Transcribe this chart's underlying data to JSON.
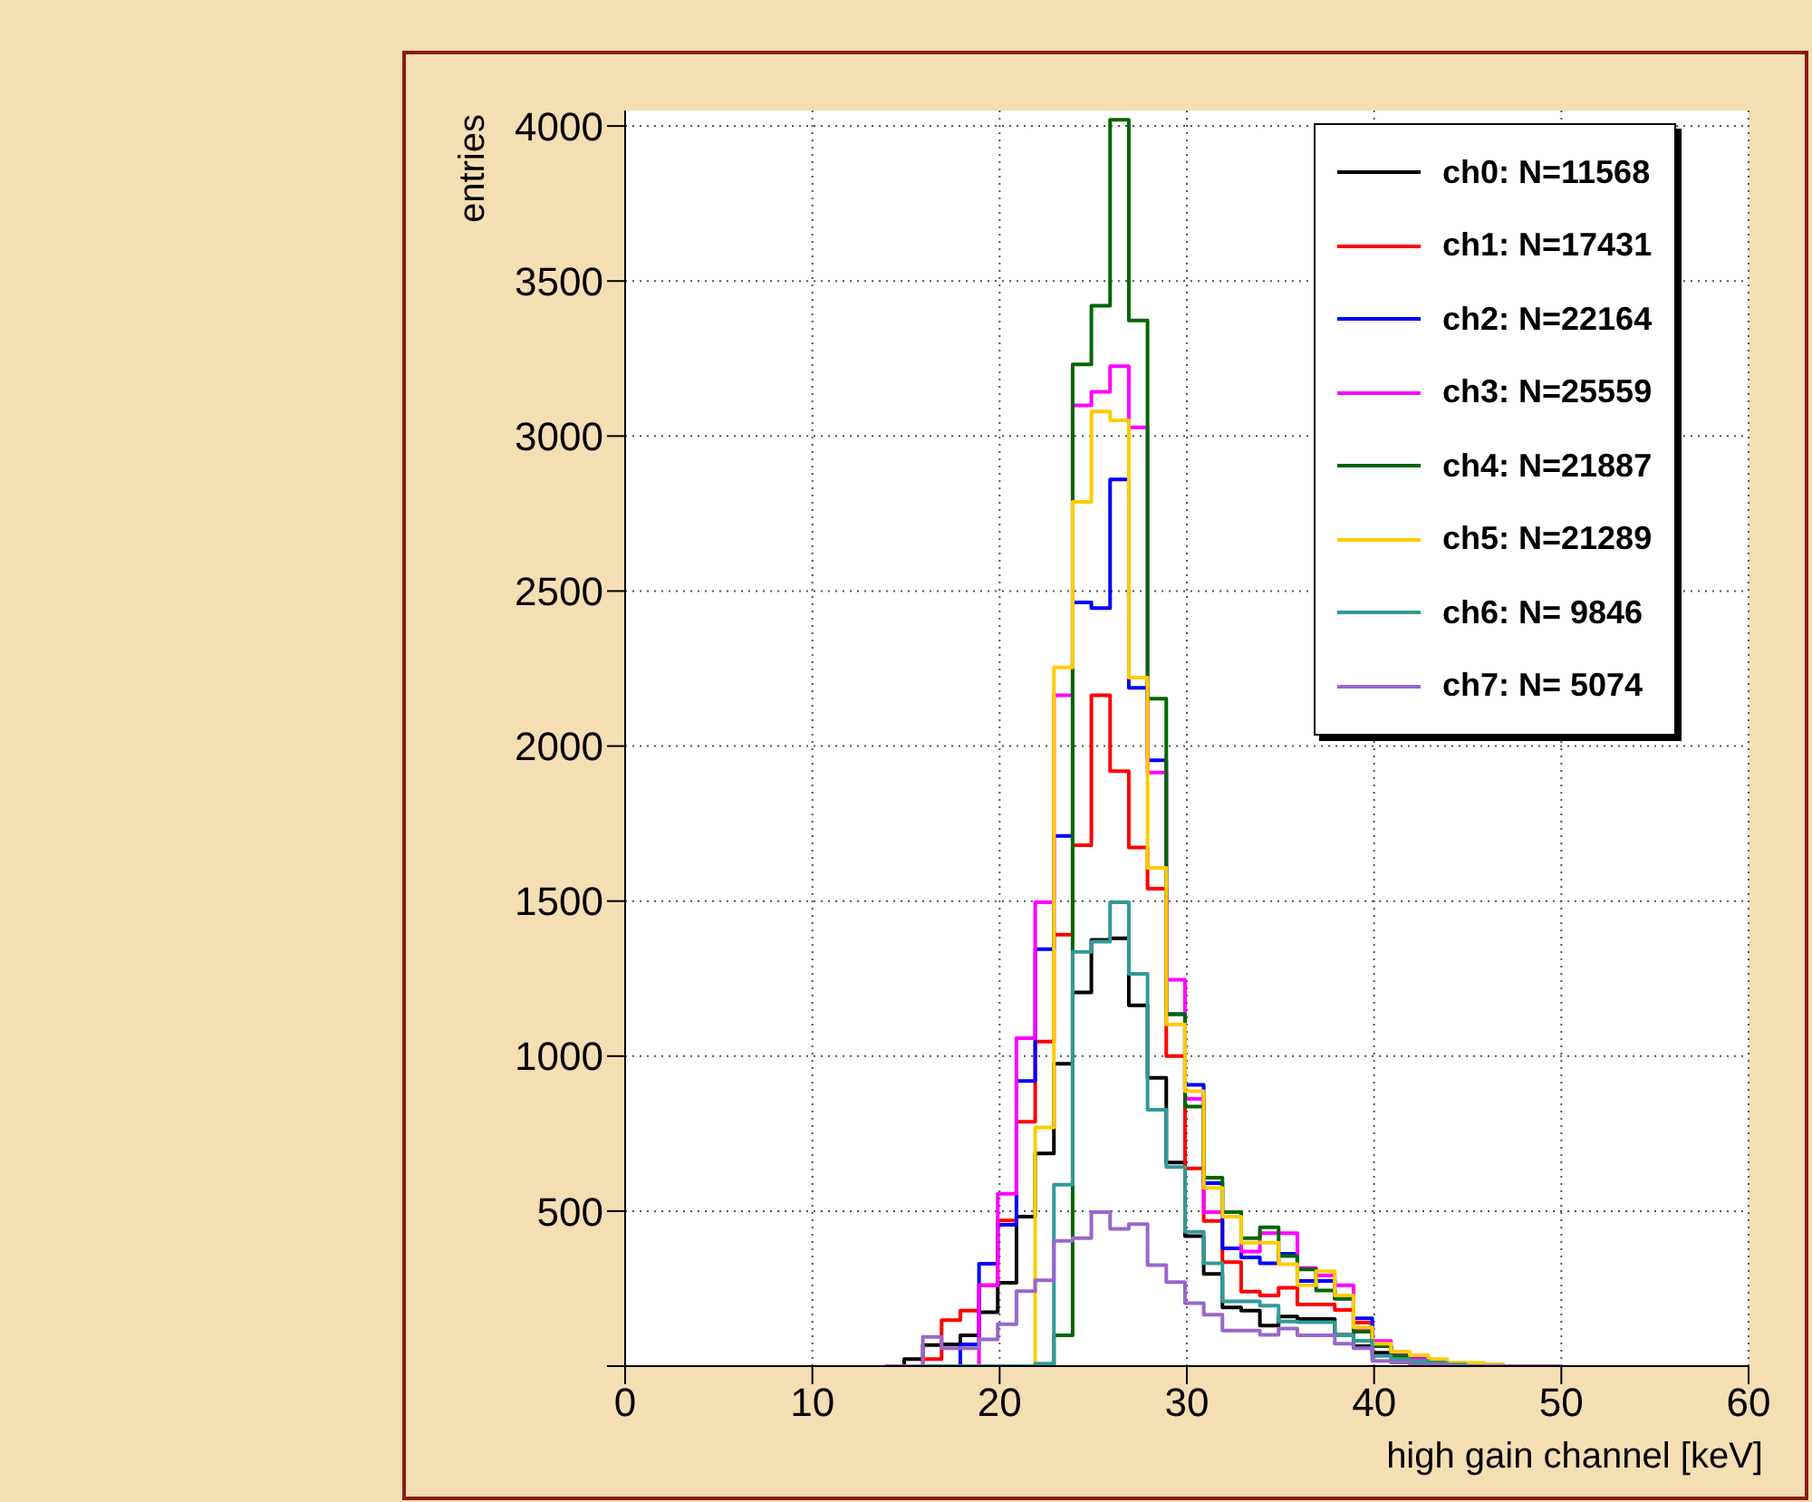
{
  "chart_data": {
    "type": "histogram",
    "xlabel": "high gain channel [keV]",
    "ylabel": "entries",
    "bins": [
      13.9,
      14.9,
      15.9,
      16.9,
      17.9,
      18.9,
      19.9,
      20.9,
      21.9,
      22.9,
      23.9,
      24.9,
      25.9,
      26.9,
      27.9,
      28.9,
      29.9,
      30.9,
      31.9,
      32.9,
      33.9,
      34.9,
      35.9,
      36.9,
      37.9,
      38.9,
      39.9,
      40.9,
      41.9,
      42.9,
      43.9,
      44.9,
      45.9,
      46.9,
      47.9,
      48.9,
      49.9
    ],
    "series": [
      {
        "name": "ch0: N=11568",
        "color": "#000000",
        "values": [
          0,
          23,
          68,
          70,
          99,
          174,
          269,
          482,
          686,
          975,
          1205,
          1375,
          1380,
          1164,
          930,
          657,
          419,
          297,
          189,
          179,
          131,
          160,
          152,
          152,
          101,
          64,
          43,
          33,
          23,
          12,
          5,
          5,
          0,
          0,
          0,
          0
        ]
      },
      {
        "name": "ch1: N=17431",
        "color": "#ff0000",
        "values": [
          0,
          0,
          23,
          148,
          179,
          261,
          470,
          788,
          1047,
          1392,
          1680,
          2164,
          1919,
          1673,
          1540,
          1000,
          638,
          468,
          335,
          240,
          228,
          253,
          199,
          199,
          181,
          140,
          64,
          41,
          20,
          10,
          5,
          0,
          0,
          0,
          0,
          0
        ]
      },
      {
        "name": "ch2: N=22164",
        "color": "#0000ff",
        "values": [
          0,
          0,
          0,
          0,
          70,
          330,
          456,
          920,
          1345,
          1710,
          2463,
          2445,
          2860,
          2188,
          1954,
          1135,
          907,
          590,
          380,
          351,
          332,
          362,
          275,
          275,
          218,
          154,
          64,
          41,
          25,
          15,
          5,
          5,
          0,
          0,
          0,
          0
        ]
      },
      {
        "name": "ch3: N=25559",
        "color": "#ff00ff",
        "values": [
          0,
          0,
          0,
          0,
          0,
          261,
          556,
          1058,
          1496,
          2164,
          3099,
          3143,
          3225,
          3028,
          1915,
          1246,
          862,
          497,
          497,
          370,
          429,
          429,
          316,
          292,
          261,
          121,
          81,
          43,
          23,
          12,
          5,
          5,
          5,
          0,
          0,
          0
        ]
      },
      {
        "name": "ch4: N=21887",
        "color": "#006600",
        "values": [
          0,
          0,
          0,
          0,
          0,
          0,
          0,
          0,
          0,
          99,
          3231,
          3420,
          4020,
          3373,
          2153,
          1135,
          837,
          608,
          497,
          413,
          448,
          355,
          312,
          244,
          218,
          111,
          64,
          33,
          15,
          12,
          5,
          5,
          0,
          0,
          0,
          0
        ]
      },
      {
        "name": "ch5: N=21289",
        "color": "#ffcc00",
        "values": [
          0,
          0,
          0,
          0,
          0,
          0,
          0,
          0,
          770,
          2254,
          2788,
          3079,
          3051,
          2221,
          1607,
          1102,
          887,
          575,
          482,
          398,
          398,
          329,
          261,
          306,
          228,
          125,
          72,
          47,
          35,
          23,
          12,
          10,
          5,
          0,
          0,
          0
        ]
      },
      {
        "name": "ch6: N= 9846",
        "color": "#339999",
        "values": [
          0,
          0,
          0,
          0,
          0,
          0,
          0,
          0,
          8,
          585,
          1336,
          1369,
          1496,
          1265,
          827,
          642,
          433,
          332,
          209,
          209,
          195,
          144,
          142,
          142,
          99,
          82,
          33,
          23,
          17,
          10,
          5,
          0,
          0,
          0,
          0,
          0
        ]
      },
      {
        "name": "ch7: N= 5074",
        "color": "#9966cc",
        "values": [
          0,
          0,
          94,
          58,
          58,
          86,
          135,
          242,
          277,
          404,
          413,
          497,
          443,
          458,
          326,
          271,
          203,
          166,
          115,
          115,
          101,
          121,
          99,
          99,
          72,
          58,
          17,
          12,
          5,
          5,
          0,
          0,
          0,
          0,
          0,
          0
        ]
      }
    ],
    "xlim": [
      0,
      60
    ],
    "xticks": [
      0,
      10,
      20,
      30,
      40,
      50,
      60
    ],
    "ylim": [
      0,
      4050
    ],
    "yticks": [
      {
        "value": 0,
        "label": null
      },
      500,
      1000,
      1500,
      2000,
      2500,
      3000,
      3500,
      4000
    ],
    "grid": true,
    "legend": "top right"
  }
}
